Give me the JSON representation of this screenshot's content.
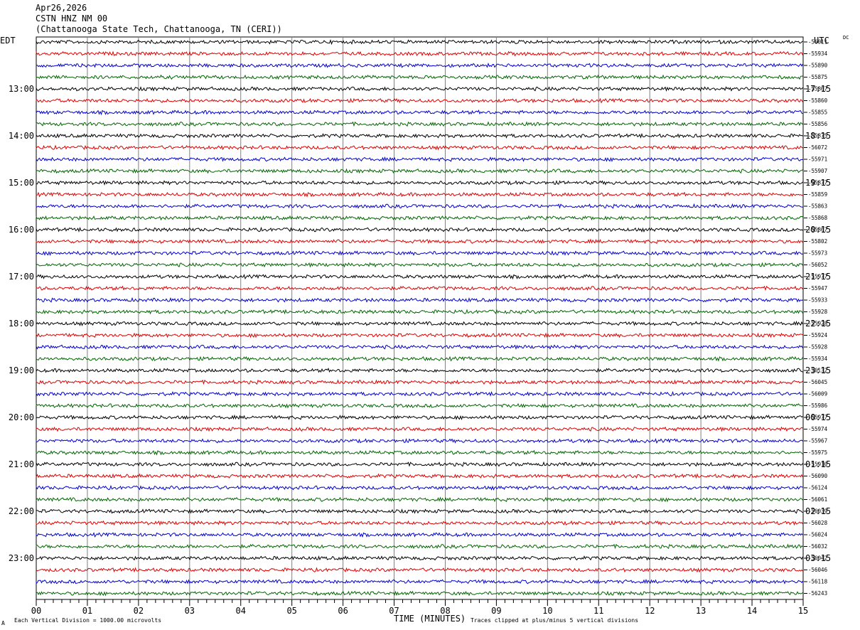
{
  "header": {
    "date": "Apr26,2026",
    "station": "CSTN HNZ NM 00",
    "location": "(Chattanooga State Tech, Chattanooga, TN (CERI))"
  },
  "left_zone_label": "EDT",
  "right_zone_label": "UTC",
  "dc_label": "DC",
  "footer": {
    "scale_note": "Each Vertical Division = 1000.00 microvolts",
    "xlabel": "TIME (MINUTES)",
    "clip_note": "Traces clipped at plus/minus 5 vertical divisions",
    "corner_mark": "A"
  },
  "colors": {
    "trace_cycle": [
      "#000000",
      "#dd0000",
      "#0000cc",
      "#006600"
    ],
    "grid": "#808080"
  },
  "chart_data": {
    "type": "seismogram-helicorder",
    "x_ticks": [
      "00",
      "01",
      "02",
      "03",
      "04",
      "05",
      "06",
      "07",
      "08",
      "09",
      "10",
      "11",
      "12",
      "13",
      "14",
      "15"
    ],
    "xlim": [
      0,
      15
    ],
    "left_hour_labels": [
      "13:00",
      "14:00",
      "15:00",
      "16:00",
      "17:00",
      "18:00",
      "19:00",
      "20:00",
      "21:00",
      "22:00",
      "23:00"
    ],
    "right_hour_labels": [
      "17:15",
      "18:15",
      "19:15",
      "20:15",
      "21:15",
      "22:15",
      "23:15",
      "00:15",
      "01:15",
      "02:15",
      "03:15"
    ],
    "dc_offsets": [
      -56011,
      -55934,
      -55890,
      -55875,
      -55867,
      -55860,
      -55855,
      -55856,
      -55875,
      -56072,
      -55971,
      -55907,
      -55877,
      -55859,
      -55863,
      -55868,
      -55867,
      -55802,
      -55973,
      -56052,
      -55977,
      -55947,
      -55933,
      -55928,
      -55928,
      -55924,
      -55928,
      -55934,
      -56132,
      -56045,
      -56009,
      -55986,
      -55977,
      -55974,
      -55967,
      -55975,
      -55910,
      -56090,
      -56124,
      -56061,
      -56039,
      -56028,
      -56024,
      -56032,
      -56042,
      -56046,
      -56118,
      -56243
    ]
  }
}
